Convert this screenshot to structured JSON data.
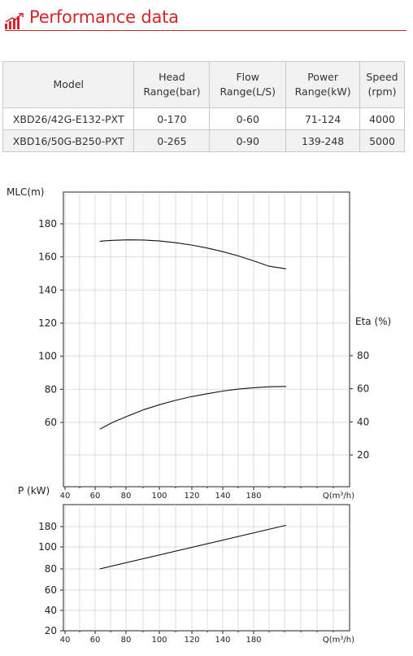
{
  "header": {
    "title": "Performance data",
    "icon": "bar-chart-icon",
    "accent": "#d7262a"
  },
  "table": {
    "headers": [
      {
        "line1": "Model",
        "line2": ""
      },
      {
        "line1": "Head",
        "line2": "Range(bar)"
      },
      {
        "line1": "Flow",
        "line2": "Range(L/S)"
      },
      {
        "line1": "Power",
        "line2": "Range(kW)"
      },
      {
        "line1": "Speed",
        "line2": "(rpm)"
      }
    ],
    "rows": [
      [
        "XBD26/42G-E132-PXT",
        "0-170",
        "0-60",
        "71-124",
        "4000"
      ],
      [
        "XBD16/50G-B250-PXT",
        "0-265",
        "0-90",
        "139-248",
        "5000"
      ]
    ]
  },
  "chart_data": [
    {
      "type": "line",
      "ylabel": "MLC(m)",
      "y2label": "Eta (%)",
      "xlabel": "Q(m³/h)",
      "x_ticks": [
        "40",
        "60",
        "80",
        "100",
        "120",
        "140",
        "180"
      ],
      "y_ticks": [
        "60",
        "80",
        "100",
        "120",
        "140",
        "160",
        "180"
      ],
      "y2_ticks": [
        "20",
        "40",
        "60",
        "80"
      ],
      "series": [
        {
          "x": [
            62,
            70,
            80,
            90,
            100,
            110,
            120,
            130,
            140,
            150,
            160,
            170,
            181
          ],
          "y": [
            169.5,
            170,
            170.3,
            170.2,
            169.6,
            168.6,
            167.2,
            165.4,
            163.2,
            160.6,
            157.6,
            154.4,
            152.8
          ]
        },
        {
          "x": [
            62,
            70,
            80,
            90,
            100,
            110,
            120,
            130,
            140,
            150,
            160,
            170,
            181
          ],
          "y2": [
            35.6,
            39.6,
            43.6,
            47.4,
            50.4,
            53.0,
            55.2,
            57.0,
            58.6,
            59.8,
            60.6,
            61.2,
            61.4
          ]
        }
      ]
    },
    {
      "type": "line",
      "ylabel": "P (kW)",
      "xlabel": "Q(m³/h)",
      "x_ticks": [
        "40",
        "60",
        "80",
        "100",
        "120",
        "140",
        "180"
      ],
      "y_ticks": [
        "20",
        "40",
        "60",
        "80",
        "100",
        "180"
      ],
      "series": [
        {
          "x": [
            62,
            181
          ],
          "y": [
            80,
            185
          ]
        }
      ]
    }
  ]
}
